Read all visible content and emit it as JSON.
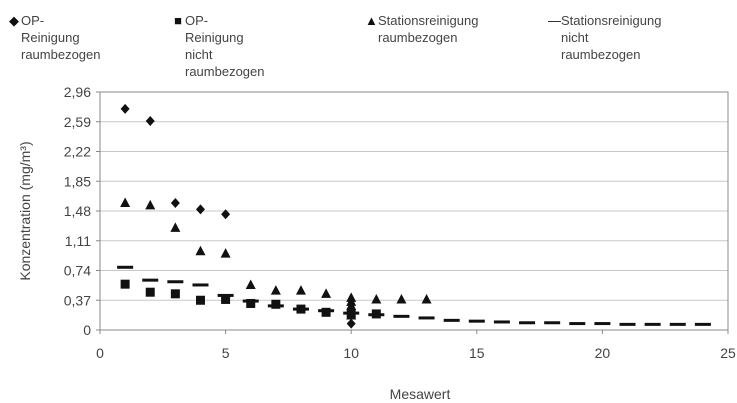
{
  "chart_data": {
    "type": "scatter",
    "xlabel": "Mesawert",
    "ylabel": "Konzentration (mg/m³)",
    "xlim": [
      0,
      25
    ],
    "ylim": [
      0,
      2.96
    ],
    "xticks": [
      "0",
      "5",
      "10",
      "15",
      "20",
      "25"
    ],
    "yticks": [
      "0",
      "0,37",
      "0,74",
      "1,11",
      "1,48",
      "1,85",
      "2,22",
      "2,59",
      "2,96"
    ],
    "grid": "horizontal",
    "legend_position": "top",
    "series": [
      {
        "name": "OP-Reinigung\nraumbezogen",
        "marker": "diamond",
        "symbol": "◆",
        "color": "#111111",
        "points": [
          [
            1,
            2.75
          ],
          [
            2,
            2.6
          ],
          [
            3,
            1.58
          ],
          [
            4,
            1.5
          ],
          [
            5,
            1.44
          ],
          [
            10,
            0.08
          ]
        ]
      },
      {
        "name": "OP-Reinigung\nnicht raumbezogen",
        "marker": "square",
        "symbol": "■",
        "color": "#111111",
        "points": [
          [
            1,
            0.57
          ],
          [
            2,
            0.47
          ],
          [
            3,
            0.45
          ],
          [
            4,
            0.37
          ],
          [
            5,
            0.38
          ],
          [
            6,
            0.33
          ],
          [
            7,
            0.32
          ],
          [
            8,
            0.26
          ],
          [
            9,
            0.22
          ],
          [
            10,
            0.2
          ],
          [
            11,
            0.2
          ]
        ]
      },
      {
        "name": "Stationsreinigung\nraumbezogen",
        "marker": "triangle",
        "symbol": "▲",
        "color": "#111111",
        "points": [
          [
            1,
            1.58
          ],
          [
            2,
            1.55
          ],
          [
            3,
            1.27
          ],
          [
            4,
            0.98
          ],
          [
            5,
            0.95
          ],
          [
            6,
            0.56
          ],
          [
            7,
            0.49
          ],
          [
            8,
            0.49
          ],
          [
            9,
            0.45
          ],
          [
            10,
            0.4
          ],
          [
            10,
            0.35
          ],
          [
            10,
            0.3
          ],
          [
            10,
            0.25
          ],
          [
            10,
            0.18
          ],
          [
            11,
            0.38
          ],
          [
            12,
            0.38
          ],
          [
            13,
            0.38
          ]
        ]
      },
      {
        "name": "Stationsreinigung\nnicht raumbezogen",
        "marker": "dash",
        "symbol": "—",
        "color": "#111111",
        "points": [
          [
            1,
            0.78
          ],
          [
            2,
            0.62
          ],
          [
            3,
            0.6
          ],
          [
            4,
            0.56
          ],
          [
            5,
            0.43
          ],
          [
            6,
            0.36
          ],
          [
            7,
            0.3
          ],
          [
            8,
            0.26
          ],
          [
            9,
            0.24
          ],
          [
            10,
            0.21
          ],
          [
            11,
            0.19
          ],
          [
            12,
            0.17
          ],
          [
            13,
            0.15
          ],
          [
            14,
            0.12
          ],
          [
            15,
            0.11
          ],
          [
            16,
            0.1
          ],
          [
            17,
            0.09
          ],
          [
            18,
            0.09
          ],
          [
            19,
            0.08
          ],
          [
            20,
            0.08
          ],
          [
            21,
            0.07
          ],
          [
            22,
            0.07
          ],
          [
            23,
            0.07
          ],
          [
            24,
            0.07
          ]
        ]
      }
    ]
  }
}
